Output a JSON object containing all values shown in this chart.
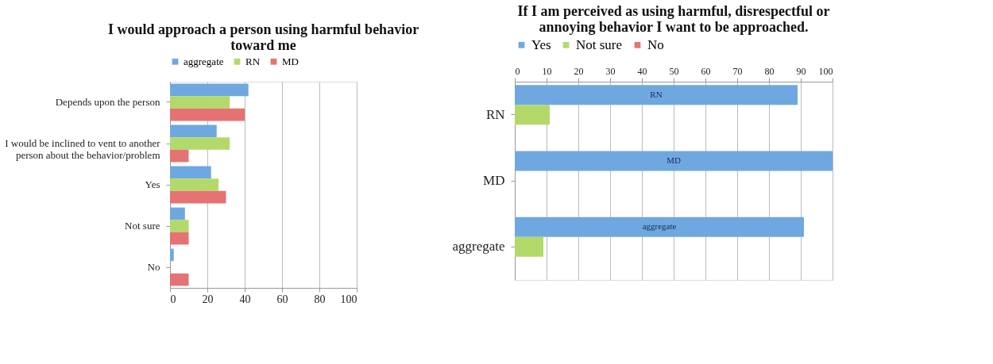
{
  "chart_data": [
    {
      "type": "bar",
      "orientation": "horizontal",
      "title": "I would approach a person using harmful behavior toward me",
      "categories": [
        "Depends upon the person",
        "I would be inclined to vent to another person about the behavior/problem",
        "Yes",
        "Not sure",
        "No"
      ],
      "series": [
        {
          "name": "aggregate",
          "color": "#6fa8e0",
          "values": [
            42,
            25,
            22,
            8,
            2
          ]
        },
        {
          "name": "RN",
          "color": "#b3d96b",
          "values": [
            32,
            32,
            26,
            10,
            0
          ]
        },
        {
          "name": "MD",
          "color": "#e57373",
          "values": [
            40,
            10,
            30,
            10,
            10
          ]
        }
      ],
      "xlim": [
        0,
        100
      ],
      "xticks": [
        0,
        20,
        40,
        60,
        80,
        100
      ],
      "grid": "x",
      "legend": "top"
    },
    {
      "type": "bar",
      "orientation": "horizontal",
      "title": "If I am perceived as using harmful, disrespectful or annoying behavior I want to be approached.",
      "categories": [
        "RN",
        "MD",
        "aggregate"
      ],
      "series": [
        {
          "name": "Yes",
          "color": "#6fa8e0",
          "values": [
            89,
            100,
            91
          ]
        },
        {
          "name": "Not sure",
          "color": "#b3d96b",
          "values": [
            11,
            0,
            9
          ]
        },
        {
          "name": "No",
          "color": "#e57373",
          "values": [
            0,
            0,
            0
          ]
        }
      ],
      "annotations": [
        "RN",
        "MD",
        "aggregate"
      ],
      "xlim": [
        0,
        100
      ],
      "xticks": [
        0,
        10,
        20,
        30,
        40,
        50,
        60,
        70,
        80,
        90,
        100
      ],
      "grid": "x",
      "legend": "top"
    }
  ]
}
